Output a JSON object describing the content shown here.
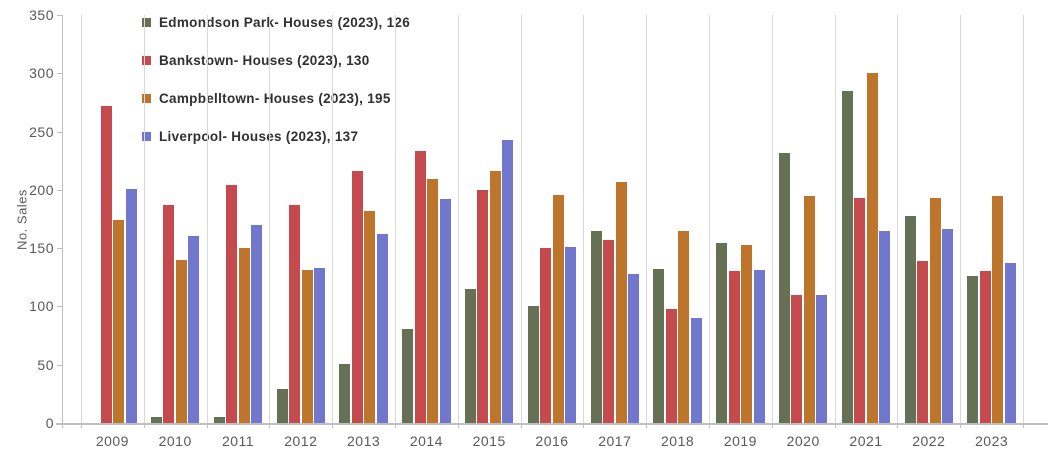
{
  "chart_data": {
    "type": "bar",
    "title": "",
    "xlabel": "",
    "ylabel": "No. Sales",
    "ylim": [
      0,
      350
    ],
    "y_ticks": [
      0,
      50,
      100,
      150,
      200,
      250,
      300,
      350
    ],
    "grid": "vertical-category-separators",
    "legend_position": "top-left-inside",
    "categories": [
      "2009",
      "2010",
      "2011",
      "2012",
      "2013",
      "2014",
      "2015",
      "2016",
      "2017",
      "2018",
      "2019",
      "2020",
      "2021",
      "2022",
      "2023"
    ],
    "series": [
      {
        "name": "Edmondson Park- Houses (2023)",
        "legend_label": "Edmondson Park- Houses (2023), 126",
        "color": "#657055",
        "values": [
          0,
          5,
          5,
          29,
          51,
          81,
          115,
          100,
          165,
          132,
          154,
          232,
          285,
          178,
          126
        ]
      },
      {
        "name": "Bankstown- Houses (2023)",
        "legend_label": "Bankstown- Houses (2023), 130",
        "color": "#C54A4D",
        "values": [
          272,
          187,
          204,
          187,
          216,
          233,
          200,
          150,
          157,
          98,
          130,
          110,
          193,
          139,
          130
        ]
      },
      {
        "name": "Campbelltown- Houses (2023)",
        "legend_label": "Campbelltown- Houses (2023), 195",
        "color": "#BD752B",
        "values": [
          174,
          140,
          150,
          131,
          182,
          209,
          216,
          196,
          207,
          165,
          153,
          195,
          300,
          193,
          195
        ]
      },
      {
        "name": "Liverpool- Houses (2023)",
        "legend_label": "Liverpool- Houses (2023), 137",
        "color": "#7277CE",
        "values": [
          201,
          160,
          170,
          133,
          162,
          192,
          243,
          151,
          128,
          90,
          131,
          110,
          165,
          166,
          137
        ]
      }
    ],
    "colors": {
      "axis_line": "#BFBFBF",
      "gridline": "#D9D9D9",
      "tick_label": "#595959",
      "legend_text": "#303030",
      "background": "#FFFFFF"
    }
  }
}
